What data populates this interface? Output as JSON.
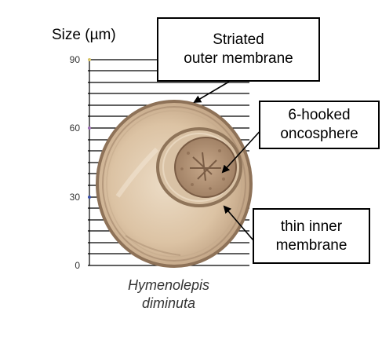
{
  "axis": {
    "label": "Size (µm)",
    "ticks": [
      "90",
      "60",
      "30",
      "0"
    ]
  },
  "callouts": {
    "outer_membrane": "Striated\nouter membrane",
    "oncosphere": "6-hooked\noncosphere",
    "inner_membrane": "thin inner\nmembrane"
  },
  "species": "Hymenolepis\ndiminuta"
}
